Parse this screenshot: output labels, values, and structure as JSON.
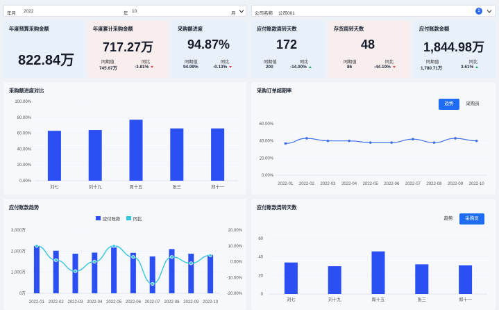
{
  "filters": {
    "year_label": "年月",
    "year_value": "2022",
    "year_unit": "年",
    "month_value": "10",
    "month_unit": "月",
    "company_label": "公司名称",
    "company_value": "公司001",
    "company_badge": "1"
  },
  "kpis": [
    {
      "title": "年度预算采购金额",
      "value": "822.84万"
    },
    {
      "title": "年度累计采购金额",
      "value": "717.27万",
      "prev_label": "同期值",
      "prev_value": "745.67万",
      "yoy_label": "同比",
      "yoy_value": "-3.81%",
      "yoy_dir": "down"
    },
    {
      "title": "采购额进度",
      "value": "94.87%",
      "prev_label": "同期值",
      "prev_value": "94.99%",
      "yoy_label": "同比",
      "yoy_value": "-0.13%",
      "yoy_dir": "down"
    },
    {
      "title": "应付账款周转天数",
      "value": "172",
      "prev_label": "同期值",
      "prev_value": "200",
      "yoy_label": "同比",
      "yoy_value": "-14.00%",
      "yoy_dir": "up"
    },
    {
      "title": "存货周转天数",
      "value": "48",
      "prev_label": "同期值",
      "prev_value": "86",
      "yoy_label": "同比",
      "yoy_value": "-44.19%",
      "yoy_dir": "down"
    },
    {
      "title": "应付账款金额",
      "value": "1,844.98万",
      "prev_label": "同期值",
      "prev_value": "1,780.71万",
      "yoy_label": "同比",
      "yoy_value": "3.61%",
      "yoy_dir": "up"
    }
  ],
  "colors": {
    "bar": "#2b4ff2",
    "line": "#3f6fe8",
    "cyan": "#35c5dc",
    "kpi_bg": [
      "#e8f0fc",
      "#f8eeee",
      "#e8f0fc",
      "#e8f0fc",
      "#f8eeee",
      "#e8f0fc"
    ]
  },
  "panels": {
    "progress_title": "采购额进度对比",
    "overdue_title": "采购订单超期率",
    "overdue_btn_active": "趋势",
    "overdue_btn_other": "采购员",
    "payable_title": "应付账款趋势",
    "turnover_title": "应付账款周转天数",
    "turnover_btn_plain": "趋势",
    "turnover_btn_active": "采购员"
  },
  "chart_data": [
    {
      "type": "bar",
      "categories": [
        "刘七",
        "刘十九",
        "周十五",
        "张三",
        "郑十一"
      ],
      "values": [
        63,
        64,
        77,
        66,
        66
      ],
      "yticks": [
        "0.00%",
        "20.00%",
        "40.00%",
        "60.00%",
        "80.00%",
        "100.00%"
      ],
      "ylim": [
        0,
        100
      ]
    },
    {
      "type": "line",
      "x": [
        "2022-01",
        "2022-02",
        "2022-03",
        "2022-04",
        "2022-05",
        "2022-06",
        "2022-07",
        "2022-08",
        "2022-09",
        "2022-10"
      ],
      "values": [
        37,
        43,
        40,
        40,
        38,
        38,
        42,
        38,
        43,
        40
      ],
      "yticks": [
        "0.00%",
        "20.00%",
        "40.00%",
        "60.00%"
      ],
      "ylim": [
        0,
        60
      ]
    },
    {
      "type": "bar",
      "x": [
        "2022-01",
        "2022-02",
        "2022-03",
        "2022-04",
        "2022-05",
        "2022-06",
        "2022-07",
        "2022-08",
        "2022-09",
        "2022-10"
      ],
      "legend": [
        "应付账款",
        "同比"
      ],
      "bar_values": [
        2250,
        2020,
        1880,
        1930,
        2180,
        1920,
        1750,
        2100,
        1880,
        1820
      ],
      "line_values": [
        10,
        1,
        -6,
        0,
        10,
        3,
        -14,
        3,
        -1,
        4
      ],
      "yticks_left": [
        "0万",
        "1,000万",
        "2,000万",
        "3,000万"
      ],
      "yticks_right": [
        "-20.00%",
        "-10.00%",
        "0.00%",
        "10.00%",
        "20.00%"
      ],
      "ylim_left": [
        0,
        3000
      ],
      "ylim_right": [
        -20,
        20
      ]
    },
    {
      "type": "bar",
      "categories": [
        "刘七",
        "刘十九",
        "周十五",
        "张三",
        "郑十一"
      ],
      "values": [
        34,
        30,
        46,
        32,
        31
      ],
      "yticks": [
        "0",
        "20",
        "40",
        "60"
      ],
      "ylim": [
        0,
        60
      ]
    }
  ]
}
